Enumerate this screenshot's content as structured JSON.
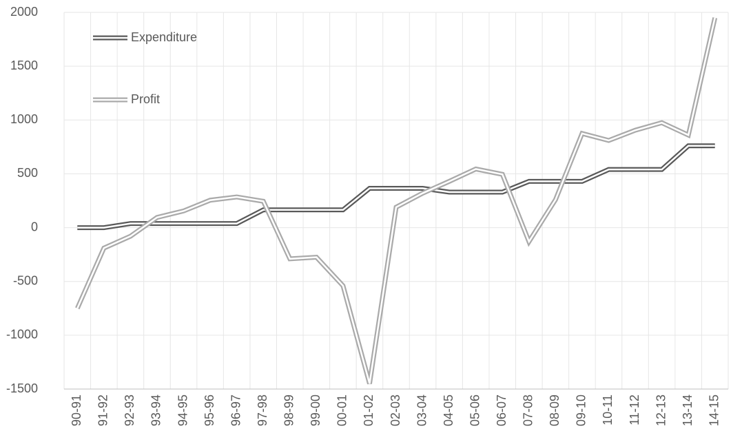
{
  "chart_data": {
    "type": "line",
    "categories": [
      "90-91",
      "91-92",
      "92-93",
      "93-94",
      "94-95",
      "95-96",
      "96-97",
      "97-98",
      "98-99",
      "99-00",
      "00-01",
      "01-02",
      "02-03",
      "03-04",
      "04-05",
      "05-06",
      "06-07",
      "07-08",
      "08-09",
      "09-10",
      "10-11",
      "11-12",
      "12-13",
      "13-14",
      "14-15"
    ],
    "series": [
      {
        "name": "Expenditure",
        "color": "#595959",
        "values": [
          0,
          0,
          38,
          38,
          38,
          38,
          38,
          165,
          165,
          165,
          165,
          365,
          365,
          365,
          330,
          330,
          330,
          430,
          430,
          430,
          540,
          540,
          540,
          760,
          760
        ]
      },
      {
        "name": "Profit",
        "color": "#aaaaaa",
        "values": [
          -750,
          -190,
          -80,
          95,
          155,
          255,
          285,
          245,
          -290,
          -275,
          -540,
          -1450,
          190,
          320,
          430,
          545,
          495,
          -130,
          260,
          875,
          810,
          905,
          975,
          860,
          1950
        ]
      }
    ],
    "ylim": [
      -1500,
      2000
    ],
    "yticks": [
      -1500,
      -1000,
      -500,
      0,
      500,
      1000,
      1500,
      2000
    ],
    "grid": true,
    "legend": "upper-left"
  }
}
